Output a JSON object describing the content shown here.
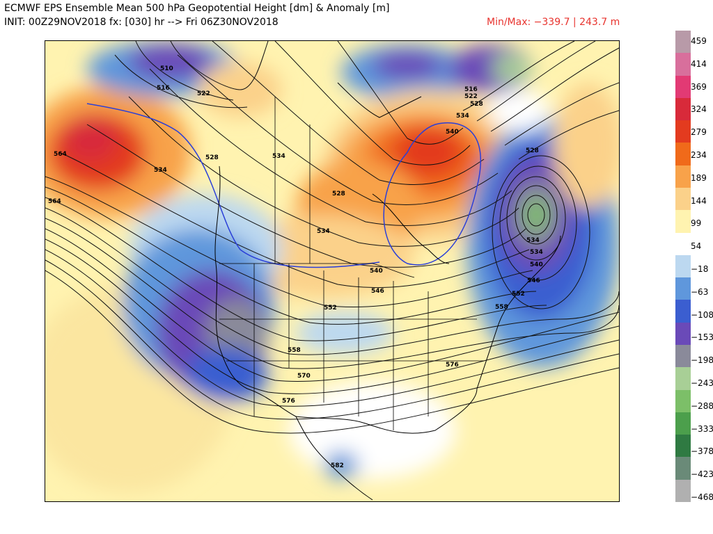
{
  "header": {
    "title": "ECMWF EPS Ensemble Mean 500 hPa Geopotential Height [dm] & Anomaly [m]",
    "init_line": "INIT: 00Z29NOV2018 fx: [030] hr --> Fri 06Z30NOV2018",
    "minmax": "Min/Max: −339.7 | 243.7 m"
  },
  "colorbar": {
    "labels": [
      "459",
      "414",
      "369",
      "324",
      "279",
      "234",
      "189",
      "144",
      "99",
      "54",
      "−18",
      "−63",
      "−108",
      "−153",
      "−198",
      "−243",
      "−288",
      "−333",
      "−378",
      "−423",
      "−468"
    ],
    "colors": [
      "#b89aa8",
      "#d86f9c",
      "#e23a74",
      "#d82a3a",
      "#e33b1f",
      "#f06a1a",
      "#f8a24a",
      "#fbd18a",
      "#fff3b0",
      "#ffffff",
      "#bcd8f0",
      "#5f97dc",
      "#3b5ed0",
      "#6a4ab8",
      "#8a8a9a",
      "#a8cf96",
      "#7cbf68",
      "#4c9f4c",
      "#2f7a42",
      "#6a8a78",
      "#b0b0b0"
    ]
  },
  "contours": {
    "labels": [
      "516",
      "522",
      "528",
      "534",
      "540",
      "546",
      "552",
      "558",
      "564",
      "570",
      "576",
      "582",
      "510"
    ]
  },
  "map": {
    "placed_labels": [
      {
        "text": "510",
        "id": "c510"
      },
      {
        "text": "516",
        "id": "c516a"
      },
      {
        "text": "522",
        "id": "c522a"
      },
      {
        "text": "564",
        "id": "c564a"
      },
      {
        "text": "564",
        "id": "c564b"
      },
      {
        "text": "534",
        "id": "c534a"
      },
      {
        "text": "528",
        "id": "c528a"
      },
      {
        "text": "534",
        "id": "c534b"
      },
      {
        "text": "528",
        "id": "c528b"
      },
      {
        "text": "534",
        "id": "c534c"
      },
      {
        "text": "540",
        "id": "c540a"
      },
      {
        "text": "546",
        "id": "c546a"
      },
      {
        "text": "552",
        "id": "c552a"
      },
      {
        "text": "558",
        "id": "c558a"
      },
      {
        "text": "570",
        "id": "c570a"
      },
      {
        "text": "576",
        "id": "c576a"
      },
      {
        "text": "582",
        "id": "c582a"
      },
      {
        "text": "576",
        "id": "c576b"
      },
      {
        "text": "540",
        "id": "c540b"
      },
      {
        "text": "534",
        "id": "c534d"
      },
      {
        "text": "516",
        "id": "c516b"
      },
      {
        "text": "522",
        "id": "c522b"
      },
      {
        "text": "528",
        "id": "c528c"
      },
      {
        "text": "534",
        "id": "c534e"
      },
      {
        "text": "528",
        "id": "c528d"
      },
      {
        "text": "534",
        "id": "c534f"
      },
      {
        "text": "540",
        "id": "c540c"
      },
      {
        "text": "546",
        "id": "c546b"
      },
      {
        "text": "552",
        "id": "c552b"
      },
      {
        "text": "558",
        "id": "c558b"
      }
    ]
  }
}
